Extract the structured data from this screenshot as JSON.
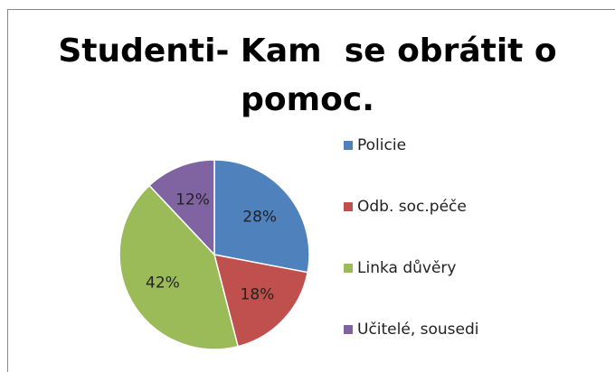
{
  "chart_data": {
    "type": "pie",
    "title": "Studenti- Kam  se obrátit o pomoc.",
    "categories": [
      "Policie",
      "Odb. soc.péče",
      "Linka důvěry",
      "Učitelé, sousedi"
    ],
    "values": [
      28,
      18,
      42,
      12
    ],
    "value_labels": [
      "28%",
      "18%",
      "42%",
      "12%"
    ],
    "colors": [
      "#4f81bd",
      "#c0504d",
      "#9bbb59",
      "#8064a2"
    ],
    "legend": "right"
  }
}
